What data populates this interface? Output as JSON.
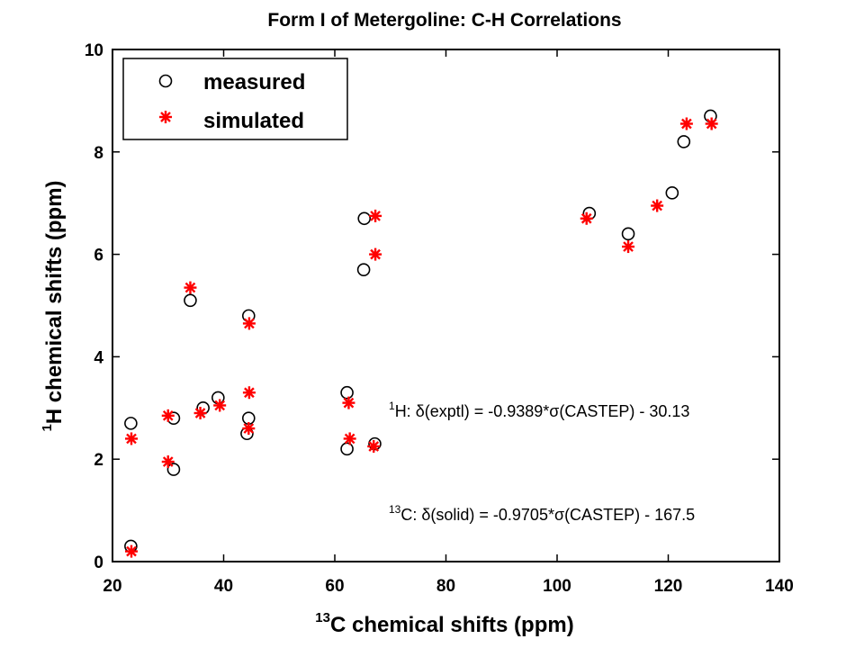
{
  "chart_data": {
    "type": "scatter",
    "title": "Form I of Metergoline: C-H Correlations",
    "xlabel": {
      "sup": "13",
      "text": "C chemical shifts (ppm)"
    },
    "ylabel": {
      "sup": "1",
      "text": "H chemical shifts (ppm)"
    },
    "xlim": [
      20,
      140
    ],
    "ylim": [
      0,
      10
    ],
    "xticks": [
      20,
      40,
      60,
      80,
      100,
      120,
      140
    ],
    "yticks": [
      0,
      2,
      4,
      6,
      8,
      10
    ],
    "grid": false,
    "legend_position": "top-left",
    "series": [
      {
        "name": "measured",
        "marker": "circle",
        "color": "#000000",
        "points": [
          [
            23.3,
            0.3
          ],
          [
            23.3,
            2.7
          ],
          [
            31.0,
            1.8
          ],
          [
            31.0,
            2.8
          ],
          [
            34.0,
            5.1
          ],
          [
            36.3,
            3.0
          ],
          [
            39.0,
            3.2
          ],
          [
            44.2,
            2.5
          ],
          [
            44.5,
            2.8
          ],
          [
            44.5,
            4.8
          ],
          [
            62.2,
            2.2
          ],
          [
            62.2,
            3.3
          ],
          [
            65.2,
            5.7
          ],
          [
            65.3,
            6.7
          ],
          [
            67.2,
            2.3
          ],
          [
            105.8,
            6.8
          ],
          [
            112.8,
            6.4
          ],
          [
            120.7,
            7.2
          ],
          [
            122.8,
            8.2
          ],
          [
            127.6,
            8.7
          ]
        ]
      },
      {
        "name": "simulated",
        "marker": "star",
        "color": "#ff0000",
        "points": [
          [
            23.4,
            0.2
          ],
          [
            23.4,
            2.4
          ],
          [
            30.0,
            1.95
          ],
          [
            30.0,
            2.85
          ],
          [
            34.0,
            5.35
          ],
          [
            35.8,
            2.9
          ],
          [
            39.3,
            3.05
          ],
          [
            44.5,
            2.6
          ],
          [
            44.6,
            3.3
          ],
          [
            44.6,
            4.65
          ],
          [
            62.7,
            2.4
          ],
          [
            62.5,
            3.1
          ],
          [
            67.3,
            6.0
          ],
          [
            67.3,
            6.75
          ],
          [
            67.0,
            2.25
          ],
          [
            105.3,
            6.7
          ],
          [
            112.8,
            6.15
          ],
          [
            118.0,
            6.95
          ],
          [
            123.3,
            8.55
          ],
          [
            127.8,
            8.55
          ]
        ]
      }
    ],
    "annotations": [
      {
        "sup": "1",
        "text": "H:  δ(exptl) = -0.9389*σ(CASTEP) - 30.13"
      },
      {
        "sup": "13",
        "text": "C:  δ(solid) = -0.9705*σ(CASTEP) - 167.5"
      }
    ]
  }
}
